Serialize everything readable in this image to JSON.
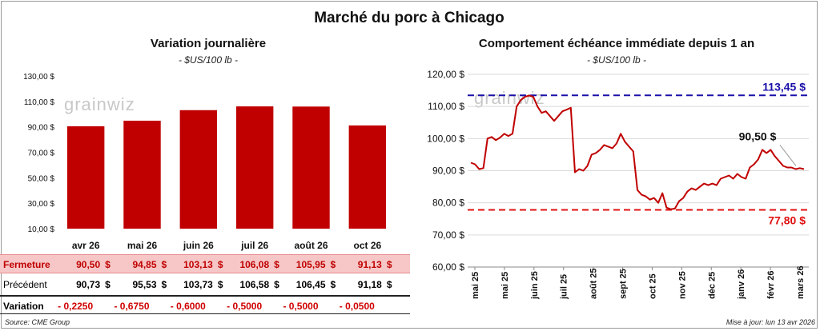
{
  "title": "Marché du porc à Chicago",
  "watermark": "grainwiz",
  "left_chart": {
    "title": "Variation journalière",
    "unit": "- $US/100 lb -"
  },
  "right_chart": {
    "title": "Comportement  échéance immédiate depuis 1 an",
    "unit": "- $US/100 lb -"
  },
  "table": {
    "currency": "$",
    "rows": [
      {
        "label": "Fermeture",
        "values": [
          "90,50",
          "94,85",
          "103,13",
          "106,08",
          "105,95",
          "91,13"
        ]
      },
      {
        "label": "Précédent",
        "values": [
          "90,73",
          "95,53",
          "103,73",
          "106,58",
          "106,45",
          "91,18"
        ]
      },
      {
        "label": "Variation",
        "values": [
          "- 0,2250",
          "- 0,6750",
          "- 0,6000",
          "- 0,5000",
          "- 0,5000",
          "- 0,0500"
        ]
      }
    ]
  },
  "footer": {
    "source": "Source: CME Group",
    "update": "Mise à jour: lun 13 avr 2026"
  },
  "colors": {
    "bar": "#c00000",
    "line": "#c00000",
    "high": "#1a0fa8",
    "low": "#e01010"
  },
  "chart_data": [
    {
      "type": "bar",
      "title": "Variation journalière",
      "subtitle": "- $US/100 lb -",
      "categories": [
        "avr 26",
        "mai 26",
        "juin 26",
        "juil 26",
        "août 26",
        "oct 26"
      ],
      "values": [
        90.5,
        94.85,
        103.13,
        106.08,
        105.95,
        91.13
      ],
      "ylim": [
        10,
        130
      ],
      "yticks": [
        "10,00 $",
        "30,00 $",
        "50,00 $",
        "70,00 $",
        "90,00 $",
        "110,00 $",
        "130,00 $"
      ],
      "grid": false
    },
    {
      "type": "line",
      "title": "Comportement  échéance immédiate depuis 1 an",
      "subtitle": "- $US/100 lb -",
      "ylim": [
        60,
        120
      ],
      "yticks": [
        "60,00 $",
        "70,00 $",
        "80,00 $",
        "90,00 $",
        "100,00 $",
        "110,00 $",
        "120,00 $"
      ],
      "xticks": [
        "mai 25",
        "mai 25",
        "juin 25",
        "juil 25",
        "août 25",
        "sept 25",
        "oct 25",
        "nov 25",
        "déc 25",
        "janv 26",
        "févr 26",
        "mars 26"
      ],
      "grid": true,
      "high_label": "113,45 $",
      "high_value": 113.45,
      "low_label": "77,80 $",
      "low_value": 77.8,
      "last_label": "90,50 $",
      "last_value": 90.5,
      "series": [
        {
          "values": [
            92.5,
            92.0,
            90.5,
            90.8,
            100.0,
            100.5,
            99.5,
            100.3,
            101.5,
            100.8,
            101.5,
            110.0,
            112.0,
            113.0,
            113.4,
            113.0,
            110.0,
            108.0,
            108.5,
            107.0,
            105.5,
            107.0,
            108.5,
            109.0,
            109.6,
            89.5,
            90.5,
            90.0,
            91.5,
            95.0,
            95.5,
            96.5,
            98.0,
            97.5,
            97.0,
            98.5,
            101.5,
            99.0,
            97.5,
            96.0,
            84.0,
            82.5,
            82.0,
            81.0,
            81.5,
            80.0,
            83.0,
            78.5,
            78.0,
            78.2,
            80.5,
            81.5,
            83.5,
            84.5,
            84.0,
            85.0,
            86.0,
            85.5,
            86.0,
            85.5,
            87.5,
            88.0,
            88.5,
            87.5,
            89.0,
            88.0,
            87.5,
            91.0,
            92.0,
            93.5,
            96.5,
            95.5,
            96.5,
            94.5,
            93.0,
            91.5,
            91.0,
            91.0,
            90.5,
            90.8,
            90.5
          ]
        }
      ]
    }
  ]
}
